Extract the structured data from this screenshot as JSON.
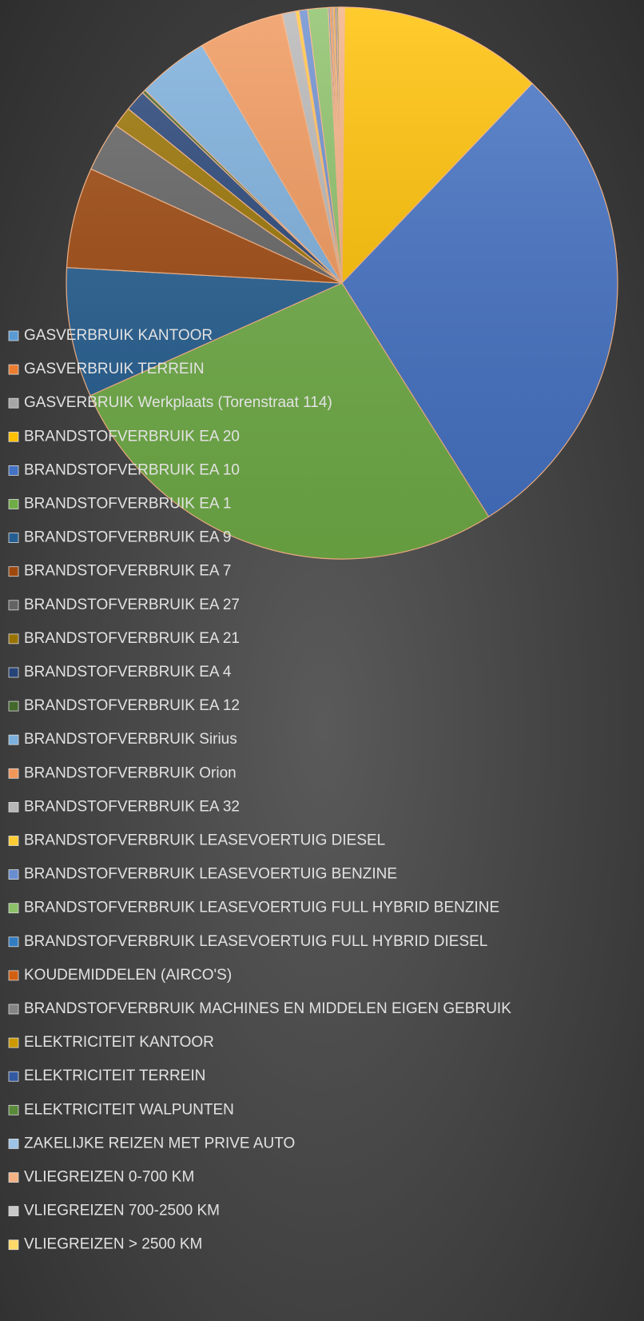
{
  "chart_data": {
    "type": "pie",
    "categories": [
      "GASVERBRUIK KANTOOR",
      "GASVERBRUIK TERREIN",
      "GASVERBRUIK Werkplaats (Torenstraat 114)",
      "BRANDSTOFVERBRUIK EA 20",
      "BRANDSTOFVERBRUIK EA 10",
      "BRANDSTOFVERBRUIK EA 1",
      "BRANDSTOFVERBRUIK EA 9",
      "BRANDSTOFVERBRUIK EA 7",
      "BRANDSTOFVERBRUIK EA 27",
      "BRANDSTOFVERBRUIK EA 21",
      "BRANDSTOFVERBRUIK EA 4",
      "BRANDSTOFVERBRUIK EA 12",
      "BRANDSTOFVERBRUIK Sirius",
      "BRANDSTOFVERBRUIK Orion",
      "BRANDSTOFVERBRUIK EA 32",
      "BRANDSTOFVERBRUIK LEASEVOERTUIG DIESEL",
      "BRANDSTOFVERBRUIK LEASEVOERTUIG BENZINE",
      "BRANDSTOFVERBRUIK LEASEVOERTUIG FULL HYBRID BENZINE",
      "BRANDSTOFVERBRUIK LEASEVOERTUIG FULL HYBRID DIESEL",
      "KOUDEMIDDELEN (AIRCO'S)",
      "BRANDSTOFVERBRUIK MACHINES EN MIDDELEN EIGEN GEBRUIK",
      "ELEKTRICITEIT KANTOOR",
      "ELEKTRICITEIT TERREIN",
      "ELEKTRICITEIT WALPUNTEN",
      "ZAKELIJKE REIZEN MET PRIVE AUTO",
      "VLIEGREIZEN 0-700 KM",
      "VLIEGREIZEN 700-2500 KM",
      "VLIEGREIZEN > 2500 KM"
    ],
    "values": [
      0.05,
      0.05,
      0.05,
      12,
      29,
      27.3,
      7.6,
      5.9,
      2.9,
      1.2,
      1.25,
      0.2,
      4.2,
      5,
      0.8,
      0.2,
      0.5,
      1.2,
      0.1,
      0.1,
      0.1,
      0.1,
      0.1,
      0.1,
      0.05,
      0.05,
      0.05,
      0.05
    ],
    "colors": [
      "#5B9BD5",
      "#ED7D31",
      "#A5A5A5",
      "#FFC000",
      "#4472C4",
      "#70AD47",
      "#255E91",
      "#9E480E",
      "#636363",
      "#997300",
      "#264478",
      "#43682B",
      "#7CAFDD",
      "#F1975A",
      "#B7B7B7",
      "#FFCD33",
      "#698ED0",
      "#8CC168",
      "#327DC2",
      "#D26012",
      "#848484",
      "#CC9A00",
      "#335AA1",
      "#5A8A39",
      "#9DC3E6",
      "#F4B183",
      "#C9C9C9",
      "#FFD966"
    ]
  }
}
